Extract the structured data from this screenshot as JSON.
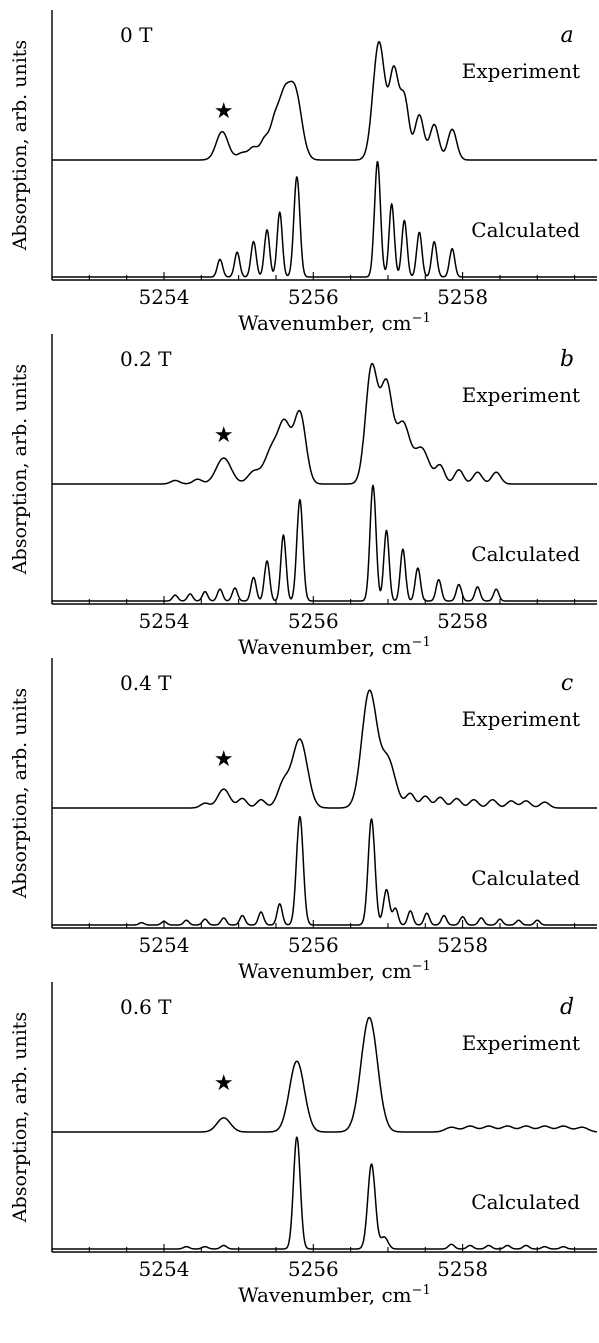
{
  "chart_data": [
    {
      "type": "line",
      "panel_letter": "a",
      "field_label": "0 T",
      "xlabel": "Wavenumber, cm",
      "xlabel_superscript": "−1",
      "ylabel": "Absorption, arb. units",
      "xlim": [
        5252.5,
        5259.8
      ],
      "x_tick_labels": [
        "5254",
        "5256",
        "5258"
      ],
      "x_tick_values": [
        5254,
        5256,
        5258
      ],
      "star_marker": {
        "symbol": "★",
        "x": 5254.8
      },
      "series": [
        {
          "name": "Experiment",
          "baseline": 1.0,
          "peaks": [
            [
              5254.78,
              0.24,
              0.08
            ],
            [
              5255.05,
              0.06,
              0.07
            ],
            [
              5255.2,
              0.1,
              0.06
            ],
            [
              5255.35,
              0.17,
              0.06
            ],
            [
              5255.48,
              0.28,
              0.06
            ],
            [
              5255.6,
              0.42,
              0.07
            ],
            [
              5255.75,
              0.6,
              0.09
            ],
            [
              5256.88,
              1.0,
              0.08
            ],
            [
              5257.08,
              0.72,
              0.06
            ],
            [
              5257.22,
              0.52,
              0.06
            ],
            [
              5257.42,
              0.38,
              0.06
            ],
            [
              5257.62,
              0.3,
              0.06
            ],
            [
              5257.86,
              0.26,
              0.06
            ]
          ]
        },
        {
          "name": "Calculated",
          "baseline": 0.0,
          "peaks": [
            [
              5254.75,
              0.15,
              0.035
            ],
            [
              5254.98,
              0.21,
              0.035
            ],
            [
              5255.2,
              0.3,
              0.035
            ],
            [
              5255.38,
              0.4,
              0.035
            ],
            [
              5255.55,
              0.55,
              0.035
            ],
            [
              5255.78,
              0.85,
              0.04
            ],
            [
              5256.86,
              0.98,
              0.04
            ],
            [
              5257.05,
              0.62,
              0.035
            ],
            [
              5257.22,
              0.48,
              0.035
            ],
            [
              5257.42,
              0.38,
              0.035
            ],
            [
              5257.62,
              0.3,
              0.035
            ],
            [
              5257.86,
              0.24,
              0.035
            ]
          ]
        }
      ]
    },
    {
      "type": "line",
      "panel_letter": "b",
      "field_label": "0.2 T",
      "xlabel": "Wavenumber, cm",
      "xlabel_superscript": "−1",
      "ylabel": "Absorption, arb. units",
      "xlim": [
        5252.5,
        5259.8
      ],
      "x_tick_labels": [
        "5254",
        "5256",
        "5258"
      ],
      "x_tick_values": [
        5254,
        5256,
        5258
      ],
      "star_marker": {
        "symbol": "★",
        "x": 5254.8
      },
      "series": [
        {
          "name": "Experiment",
          "baseline": 1.0,
          "peaks": [
            [
              5254.15,
              0.03,
              0.06
            ],
            [
              5254.45,
              0.04,
              0.06
            ],
            [
              5254.8,
              0.22,
              0.1
            ],
            [
              5255.2,
              0.1,
              0.08
            ],
            [
              5255.45,
              0.3,
              0.1
            ],
            [
              5255.62,
              0.45,
              0.08
            ],
            [
              5255.82,
              0.6,
              0.08
            ],
            [
              5256.78,
              0.98,
              0.08
            ],
            [
              5256.98,
              0.82,
              0.08
            ],
            [
              5257.2,
              0.5,
              0.09
            ],
            [
              5257.45,
              0.3,
              0.1
            ],
            [
              5257.7,
              0.15,
              0.06
            ],
            [
              5257.95,
              0.12,
              0.06
            ],
            [
              5258.2,
              0.1,
              0.06
            ],
            [
              5258.45,
              0.1,
              0.06
            ]
          ]
        },
        {
          "name": "Calculated",
          "baseline": 0.0,
          "peaks": [
            [
              5254.15,
              0.05,
              0.035
            ],
            [
              5254.35,
              0.06,
              0.035
            ],
            [
              5254.55,
              0.08,
              0.035
            ],
            [
              5254.75,
              0.1,
              0.035
            ],
            [
              5254.95,
              0.11,
              0.035
            ],
            [
              5255.2,
              0.2,
              0.035
            ],
            [
              5255.38,
              0.34,
              0.035
            ],
            [
              5255.6,
              0.56,
              0.035
            ],
            [
              5255.82,
              0.86,
              0.04
            ],
            [
              5256.8,
              0.98,
              0.04
            ],
            [
              5256.98,
              0.6,
              0.035
            ],
            [
              5257.2,
              0.44,
              0.035
            ],
            [
              5257.4,
              0.28,
              0.035
            ],
            [
              5257.68,
              0.18,
              0.035
            ],
            [
              5257.95,
              0.14,
              0.035
            ],
            [
              5258.2,
              0.12,
              0.035
            ],
            [
              5258.45,
              0.1,
              0.035
            ]
          ]
        }
      ]
    },
    {
      "type": "line",
      "panel_letter": "c",
      "field_label": "0.4 T",
      "xlabel": "Wavenumber, cm",
      "xlabel_superscript": "−1",
      "ylabel": "Absorption, arb. units",
      "xlim": [
        5252.5,
        5259.8
      ],
      "x_tick_labels": [
        "5254",
        "5256",
        "5258"
      ],
      "x_tick_values": [
        5254,
        5256,
        5258
      ],
      "star_marker": {
        "symbol": "★",
        "x": 5254.8
      },
      "series": [
        {
          "name": "Experiment",
          "baseline": 1.0,
          "peaks": [
            [
              5254.55,
              0.04,
              0.06
            ],
            [
              5254.8,
              0.16,
              0.08
            ],
            [
              5255.05,
              0.08,
              0.06
            ],
            [
              5255.3,
              0.07,
              0.06
            ],
            [
              5255.6,
              0.2,
              0.08
            ],
            [
              5255.82,
              0.58,
              0.1
            ],
            [
              5256.75,
              0.98,
              0.1
            ],
            [
              5257.0,
              0.4,
              0.1
            ],
            [
              5257.3,
              0.12,
              0.06
            ],
            [
              5257.5,
              0.1,
              0.06
            ],
            [
              5257.7,
              0.09,
              0.06
            ],
            [
              5257.92,
              0.08,
              0.06
            ],
            [
              5258.15,
              0.07,
              0.06
            ],
            [
              5258.4,
              0.07,
              0.06
            ],
            [
              5258.65,
              0.06,
              0.06
            ],
            [
              5258.85,
              0.06,
              0.06
            ],
            [
              5259.1,
              0.05,
              0.06
            ]
          ]
        },
        {
          "name": "Calculated",
          "baseline": 0.0,
          "peaks": [
            [
              5253.7,
              0.02,
              0.035
            ],
            [
              5254.0,
              0.03,
              0.035
            ],
            [
              5254.3,
              0.04,
              0.035
            ],
            [
              5254.55,
              0.05,
              0.035
            ],
            [
              5254.8,
              0.06,
              0.035
            ],
            [
              5255.05,
              0.08,
              0.035
            ],
            [
              5255.3,
              0.11,
              0.035
            ],
            [
              5255.55,
              0.18,
              0.035
            ],
            [
              5255.82,
              0.92,
              0.045
            ],
            [
              5256.78,
              0.9,
              0.045
            ],
            [
              5256.98,
              0.3,
              0.04
            ],
            [
              5257.1,
              0.14,
              0.035
            ],
            [
              5257.3,
              0.12,
              0.035
            ],
            [
              5257.52,
              0.1,
              0.035
            ],
            [
              5257.75,
              0.08,
              0.035
            ],
            [
              5258.0,
              0.07,
              0.035
            ],
            [
              5258.25,
              0.06,
              0.035
            ],
            [
              5258.5,
              0.05,
              0.035
            ],
            [
              5258.75,
              0.04,
              0.035
            ],
            [
              5259.0,
              0.04,
              0.035
            ]
          ]
        }
      ]
    },
    {
      "type": "line",
      "panel_letter": "d",
      "field_label": "0.6 T",
      "xlabel": "Wavenumber, cm",
      "xlabel_superscript": "−1",
      "ylabel": "Absorption, arb. units",
      "xlim": [
        5252.5,
        5259.8
      ],
      "x_tick_labels": [
        "5254",
        "5256",
        "5258"
      ],
      "x_tick_values": [
        5254,
        5256,
        5258
      ],
      "star_marker": {
        "symbol": "★",
        "x": 5254.8
      },
      "series": [
        {
          "name": "Experiment",
          "baseline": 1.0,
          "peaks": [
            [
              5254.8,
              0.12,
              0.09
            ],
            [
              5255.78,
              0.6,
              0.1
            ],
            [
              5256.75,
              0.97,
              0.11
            ],
            [
              5257.85,
              0.04,
              0.08
            ],
            [
              5258.1,
              0.05,
              0.08
            ],
            [
              5258.35,
              0.05,
              0.08
            ],
            [
              5258.6,
              0.05,
              0.08
            ],
            [
              5258.85,
              0.05,
              0.08
            ],
            [
              5259.1,
              0.05,
              0.08
            ],
            [
              5259.35,
              0.05,
              0.08
            ],
            [
              5259.6,
              0.04,
              0.08
            ]
          ]
        },
        {
          "name": "Calculated",
          "baseline": 0.0,
          "peaks": [
            [
              5254.3,
              0.02,
              0.04
            ],
            [
              5254.55,
              0.02,
              0.04
            ],
            [
              5254.8,
              0.03,
              0.04
            ],
            [
              5255.78,
              0.95,
              0.045
            ],
            [
              5256.78,
              0.72,
              0.05
            ],
            [
              5256.95,
              0.1,
              0.05
            ],
            [
              5257.85,
              0.04,
              0.04
            ],
            [
              5258.1,
              0.03,
              0.04
            ],
            [
              5258.35,
              0.03,
              0.04
            ],
            [
              5258.6,
              0.03,
              0.04
            ],
            [
              5258.85,
              0.03,
              0.04
            ],
            [
              5259.1,
              0.02,
              0.04
            ],
            [
              5259.35,
              0.02,
              0.04
            ]
          ]
        }
      ]
    }
  ]
}
